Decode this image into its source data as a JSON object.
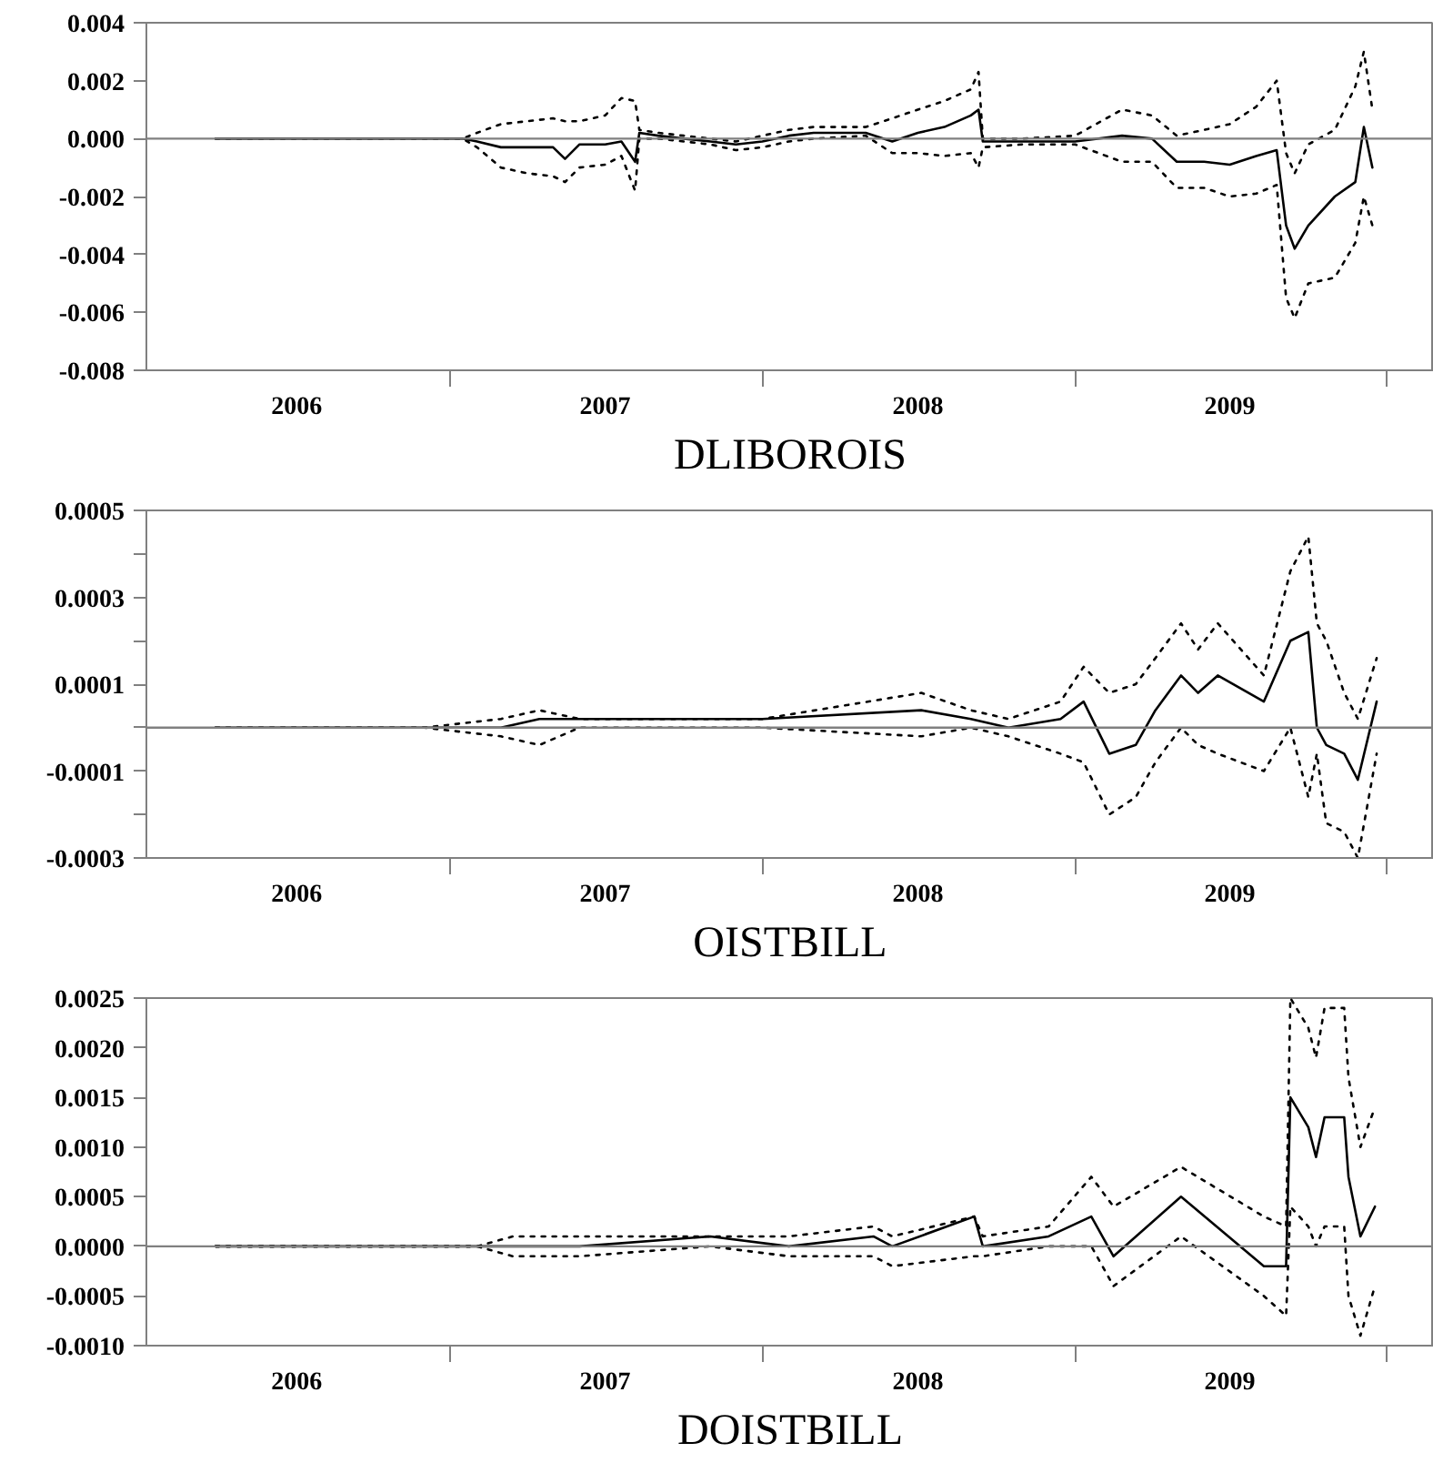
{
  "chart_data": [
    {
      "type": "line",
      "title": "DLIBOROIS",
      "x": [
        "2006-04-01",
        "2007-01-15",
        "2007-02-01",
        "2007-03-01",
        "2007-04-01",
        "2007-05-01",
        "2007-05-15",
        "2007-06-01",
        "2007-07-01",
        "2007-07-20",
        "2007-08-05",
        "2007-08-10",
        "2007-09-01",
        "2007-10-01",
        "2007-11-01",
        "2007-12-01",
        "2008-01-01",
        "2008-02-01",
        "2008-03-01",
        "2008-05-01",
        "2008-06-01",
        "2008-07-01",
        "2008-08-01",
        "2008-09-01",
        "2008-09-10",
        "2008-09-15",
        "2008-11-01",
        "2009-01-01",
        "2009-02-25",
        "2009-04-01",
        "2009-04-30",
        "2009-06-01",
        "2009-07-01",
        "2009-08-01",
        "2009-08-25",
        "2009-09-05",
        "2009-09-15",
        "2009-10-01",
        "2009-11-01",
        "2009-11-25",
        "2009-12-05",
        "2009-12-15"
      ],
      "series": [
        {
          "color": "#000000",
          "line_style": "solid",
          "values": [
            0,
            0,
            -0.0001,
            -0.0003,
            -0.0003,
            -0.0003,
            -0.0007,
            -0.0002,
            -0.0002,
            -0.0001,
            -0.0008,
            0.0002,
            0.0001,
            0.0,
            -0.0001,
            -0.0002,
            -0.0001,
            0.0001,
            0.0002,
            0.0002,
            -0.0001,
            0.0002,
            0.0004,
            0.0008,
            0.001,
            -0.0001,
            -0.0001,
            -0.0001,
            0.0001,
            0.0,
            -0.0008,
            -0.0008,
            -0.0009,
            -0.0006,
            -0.0004,
            -0.003,
            -0.0038,
            -0.003,
            -0.002,
            -0.0015,
            0.0004,
            -0.001
          ]
        },
        {
          "color": "#000000",
          "line_style": "dotted",
          "values": [
            0,
            0,
            0.0002,
            0.0005,
            0.0006,
            0.0007,
            0.0006,
            0.0006,
            0.0008,
            0.0014,
            0.0013,
            0.0003,
            0.0002,
            0.0001,
            0,
            -0.0001,
            0.0001,
            0.0003,
            0.0004,
            0.0004,
            0.0007,
            0.001,
            0.0013,
            0.0017,
            0.0023,
            0,
            0,
            0.0001,
            0.001,
            0.0008,
            0.0001,
            0.0003,
            0.0005,
            0.0011,
            0.002,
            -0.0005,
            -0.0012,
            -0.0002,
            0.0003,
            0.0018,
            0.003,
            0.001
          ]
        },
        {
          "color": "#000000",
          "line_style": "dotted",
          "values": [
            0,
            0,
            -0.0003,
            -0.001,
            -0.0012,
            -0.0013,
            -0.0015,
            -0.001,
            -0.0009,
            -0.0006,
            -0.0018,
            0,
            0,
            -0.0001,
            -0.0002,
            -0.0004,
            -0.0003,
            -0.0001,
            0,
            0.0001,
            -0.0005,
            -0.0005,
            -0.0006,
            -0.0005,
            -0.001,
            -0.0003,
            -0.0002,
            -0.0002,
            -0.0008,
            -0.0008,
            -0.0017,
            -0.0017,
            -0.002,
            -0.0019,
            -0.0016,
            -0.0055,
            -0.0062,
            -0.005,
            -0.0048,
            -0.0036,
            -0.002,
            -0.003
          ]
        }
      ],
      "xlim": [
        "2006-01-10",
        "2010-02-25"
      ],
      "xticks": [
        {
          "value": "2006-07-05",
          "label": "2006"
        },
        {
          "value": "2007-07-01",
          "label": "2007"
        },
        {
          "value": "2008-07-01",
          "label": "2008"
        },
        {
          "value": "2009-07-01",
          "label": "2009"
        },
        {
          "value": "2007-01-01",
          "label": null
        },
        {
          "value": "2008-01-01",
          "label": null
        },
        {
          "value": "2009-01-01",
          "label": null
        },
        {
          "value": "2010-01-01",
          "label": null
        }
      ],
      "ylim": [
        -0.008,
        0.004
      ],
      "yticks": [
        {
          "value": -0.008,
          "label": "-0.008"
        },
        {
          "value": -0.006,
          "label": "-0.006"
        },
        {
          "value": -0.004,
          "label": "-0.004"
        },
        {
          "value": -0.002,
          "label": "-0.002"
        },
        {
          "value": 0,
          "label": "0.000"
        },
        {
          "value": 0.002,
          "label": "0.002"
        },
        {
          "value": 0.004,
          "label": "0.004"
        }
      ],
      "ref_lines": [
        {
          "axis": "y",
          "value": 0,
          "color": "#808080"
        }
      ],
      "grid": false
    },
    {
      "type": "line",
      "title": "OISTBILL",
      "x": [
        "2006-04-01",
        "2006-12-01",
        "2007-03-01",
        "2007-04-15",
        "2007-06-01",
        "2008-01-01",
        "2008-07-05",
        "2008-09-01",
        "2008-10-15",
        "2008-12-15",
        "2009-01-11",
        "2009-02-10",
        "2009-03-13",
        "2009-04-05",
        "2009-05-05",
        "2009-05-25",
        "2009-06-17",
        "2009-08-10",
        "2009-09-10",
        "2009-10-01",
        "2009-10-11",
        "2009-10-22",
        "2009-11-12",
        "2009-11-28",
        "2009-12-20"
      ],
      "series": [
        {
          "color": "#000000",
          "line_style": "solid",
          "values": [
            0,
            0,
            0,
            2e-05,
            2e-05,
            2e-05,
            4e-05,
            2e-05,
            0,
            2e-05,
            6e-05,
            -6e-05,
            -4e-05,
            4e-05,
            0.00012,
            8e-05,
            0.00012,
            6e-05,
            0.0002,
            0.00022,
            0,
            -4e-05,
            -6e-05,
            -0.00012,
            6e-05
          ]
        },
        {
          "color": "#000000",
          "line_style": "dotted",
          "values": [
            0,
            0,
            2e-05,
            4e-05,
            2e-05,
            2e-05,
            8e-05,
            4e-05,
            2e-05,
            6e-05,
            0.00014,
            8e-05,
            0.0001,
            0.00016,
            0.00024,
            0.00018,
            0.00024,
            0.00012,
            0.00036,
            0.00044,
            0.00024,
            0.0002,
            8e-05,
            2e-05,
            0.00016
          ]
        },
        {
          "color": "#000000",
          "line_style": "dotted",
          "values": [
            0,
            0,
            -2e-05,
            -4e-05,
            0,
            0,
            -2e-05,
            0,
            -2e-05,
            -6e-05,
            -8e-05,
            -0.0002,
            -0.00016,
            -8e-05,
            0,
            -4e-05,
            -6e-05,
            -0.0001,
            0,
            -0.00016,
            -6e-05,
            -0.00022,
            -0.00024,
            -0.0003,
            -6e-05
          ]
        }
      ],
      "xlim": [
        "2006-01-10",
        "2010-02-25"
      ],
      "xticks": [
        {
          "value": "2006-07-05",
          "label": "2006"
        },
        {
          "value": "2007-07-01",
          "label": "2007"
        },
        {
          "value": "2008-07-01",
          "label": "2008"
        },
        {
          "value": "2009-07-01",
          "label": "2009"
        },
        {
          "value": "2007-01-01",
          "label": null
        },
        {
          "value": "2008-01-01",
          "label": null
        },
        {
          "value": "2009-01-01",
          "label": null
        },
        {
          "value": "2010-01-01",
          "label": null
        }
      ],
      "ylim": [
        -0.0003,
        0.0005
      ],
      "yticks": [
        {
          "value": -0.0003,
          "label": "-0.0003"
        },
        {
          "value": -0.0001,
          "label": "-0.0001"
        },
        {
          "value": 0.0001,
          "label": "0.0001"
        },
        {
          "value": 0.0003,
          "label": "0.0003"
        },
        {
          "value": 0.0005,
          "label": "0.0005"
        },
        {
          "value": -0.0002,
          "label": null
        },
        {
          "value": 0,
          "label": null
        },
        {
          "value": 0.0002,
          "label": null
        },
        {
          "value": 0.0004,
          "label": null
        }
      ],
      "ref_lines": [
        {
          "axis": "y",
          "value": 0,
          "color": "#808080"
        }
      ],
      "grid": false
    },
    {
      "type": "line",
      "title": "DOISTBILL",
      "x": [
        "2006-04-01",
        "2007-02-01",
        "2007-03-15",
        "2007-06-01",
        "2007-11-01",
        "2008-02-01",
        "2008-05-10",
        "2008-06-01",
        "2008-09-05",
        "2008-09-15",
        "2008-12-01",
        "2009-01-20",
        "2009-02-15",
        "2009-05-05",
        "2009-08-10",
        "2009-09-05",
        "2009-09-10",
        "2009-10-01",
        "2009-10-10",
        "2009-10-20",
        "2009-11-12",
        "2009-11-17",
        "2009-12-01",
        "2009-12-18"
      ],
      "series": [
        {
          "color": "#000000",
          "line_style": "solid",
          "values": [
            0,
            0,
            0,
            0,
            0.0001,
            0,
            0.0001,
            0,
            0.0003,
            0,
            0.0001,
            0.0003,
            -0.0001,
            0.0005,
            -0.0002,
            -0.0002,
            0.0015,
            0.0012,
            0.0009,
            0.0013,
            0.0013,
            0.0007,
            0.0001,
            0.0004
          ]
        },
        {
          "color": "#000000",
          "line_style": "dotted",
          "values": [
            0,
            0,
            0.0001,
            0.0001,
            0.0001,
            0.0001,
            0.0002,
            0.0001,
            0.0003,
            0.0001,
            0.0002,
            0.0007,
            0.0004,
            0.0008,
            0.0003,
            0.0002,
            0.0025,
            0.0022,
            0.0019,
            0.0024,
            0.0024,
            0.0017,
            0.001,
            0.0014
          ]
        },
        {
          "color": "#000000",
          "line_style": "dotted",
          "values": [
            0,
            0,
            -0.0001,
            -0.0001,
            0,
            -0.0001,
            -0.0001,
            -0.0002,
            -0.0001,
            -0.0001,
            0,
            0,
            -0.0004,
            0.0001,
            -0.0005,
            -0.0007,
            0.0004,
            0.0002,
            0,
            0.0002,
            0.0002,
            -0.0005,
            -0.0009,
            -0.0004
          ]
        }
      ],
      "xlim": [
        "2006-01-10",
        "2010-02-25"
      ],
      "xticks": [
        {
          "value": "2006-07-05",
          "label": "2006"
        },
        {
          "value": "2007-07-01",
          "label": "2007"
        },
        {
          "value": "2008-07-01",
          "label": "2008"
        },
        {
          "value": "2009-07-01",
          "label": "2009"
        },
        {
          "value": "2007-01-01",
          "label": null
        },
        {
          "value": "2008-01-01",
          "label": null
        },
        {
          "value": "2009-01-01",
          "label": null
        },
        {
          "value": "2010-01-01",
          "label": null
        }
      ],
      "ylim": [
        -0.001,
        0.0025
      ],
      "yticks": [
        {
          "value": -0.001,
          "label": "-0.0010"
        },
        {
          "value": -0.0005,
          "label": "-0.0005"
        },
        {
          "value": 0,
          "label": "0.0000"
        },
        {
          "value": 0.0005,
          "label": "0.0005"
        },
        {
          "value": 0.001,
          "label": "0.0010"
        },
        {
          "value": 0.0015,
          "label": "0.0015"
        },
        {
          "value": 0.002,
          "label": "0.0020"
        },
        {
          "value": 0.0025,
          "label": "0.0025"
        }
      ],
      "ref_lines": [
        {
          "axis": "y",
          "value": 0,
          "color": "#808080"
        }
      ],
      "grid": false
    }
  ]
}
